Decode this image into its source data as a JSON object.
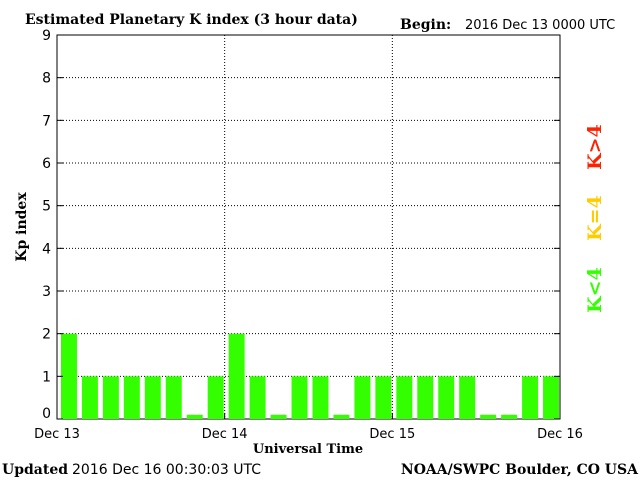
{
  "chart_data": {
    "type": "bar",
    "title": "Estimated Planetary K index (3 hour data)",
    "begin_label": "Begin:",
    "begin_value": "2016 Dec 13 0000 UTC",
    "ylabel": "Kp index",
    "xlabel": "Universal Time",
    "ylim": [
      0,
      9
    ],
    "yticks": [
      "0",
      "1",
      "2",
      "3",
      "4",
      "5",
      "6",
      "7",
      "8",
      "9"
    ],
    "xticks": [
      "Dec 13",
      "Dec 14",
      "Dec 15",
      "Dec 16"
    ],
    "grid": true,
    "bars_per_day": 8,
    "values": [
      2,
      1,
      1,
      1,
      1,
      1,
      0.1,
      1,
      2,
      1,
      0.1,
      1,
      1,
      0.1,
      1,
      1,
      1,
      1,
      1,
      1,
      0.1,
      0.1,
      1,
      1
    ],
    "bar_color": "#33ff00",
    "legend": [
      {
        "label": "K>4",
        "color": "#ff2200"
      },
      {
        "label": "K=4",
        "color": "#ffcc00"
      },
      {
        "label": "K<4",
        "color": "#33ff00"
      }
    ],
    "footer_left_label": "Updated",
    "footer_left_value": "2016 Dec 16 00:30:03 UTC",
    "footer_right": "NOAA/SWPC Boulder, CO USA"
  }
}
